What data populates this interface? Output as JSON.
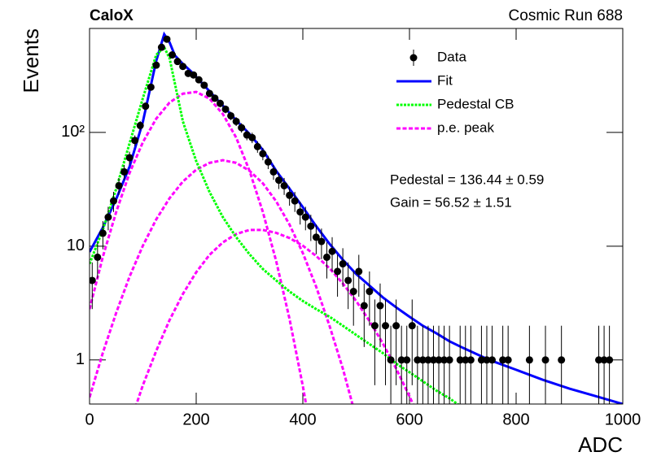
{
  "chart_data": {
    "type": "line",
    "title": "CaloX",
    "subtitle": "Cosmic Run 688",
    "x_label": "ADC",
    "y_label": "Events",
    "annotations": [
      "Pedestal = 136.44 ± 0.59",
      "Gain = 56.52 ± 1.51"
    ],
    "xlim": [
      0,
      1000
    ],
    "xticks": [
      0,
      200,
      400,
      600,
      800,
      1000
    ],
    "ylim": [
      0.41,
      820
    ],
    "ylog": true,
    "yticks": [
      1,
      10,
      {
        "value": 100,
        "label": "10²"
      }
    ],
    "legend": "upper right",
    "series": [
      {
        "name": "Data",
        "type": "errorbar",
        "color": "#000000",
        "x": [
          5,
          15,
          25,
          35,
          45,
          55,
          65,
          75,
          85,
          95,
          105,
          115,
          125,
          135,
          145,
          155,
          165,
          175,
          185,
          195,
          205,
          215,
          225,
          235,
          245,
          255,
          265,
          275,
          285,
          295,
          305,
          315,
          325,
          335,
          345,
          355,
          365,
          375,
          385,
          395,
          405,
          415,
          425,
          435,
          445,
          455,
          465,
          475,
          485,
          495,
          505,
          515,
          525,
          535,
          545,
          555,
          565,
          575,
          585,
          595,
          605,
          615,
          625,
          635,
          645,
          655,
          665,
          675,
          685,
          695,
          705,
          715,
          725,
          735,
          745,
          755,
          765,
          775,
          785,
          795,
          805,
          815,
          825,
          835,
          845,
          855,
          865,
          875,
          885,
          895,
          905,
          915,
          925,
          935,
          945,
          955,
          965,
          975,
          985,
          995
        ],
        "values": [
          5,
          8,
          13,
          18,
          25,
          34,
          45,
          60,
          85,
          115,
          170,
          250,
          390,
          560,
          660,
          480,
          420,
          380,
          330,
          320,
          290,
          260,
          220,
          200,
          180,
          160,
          140,
          125,
          110,
          95,
          90,
          75,
          65,
          55,
          45,
          38,
          34,
          28,
          25,
          20,
          18,
          15,
          12,
          11,
          8,
          9,
          6,
          7,
          5,
          4,
          6,
          3,
          4,
          2,
          3,
          2,
          1,
          2,
          1,
          1,
          2,
          1,
          1,
          1,
          1,
          1,
          1,
          1,
          null,
          1,
          1,
          1,
          null,
          1,
          1,
          1,
          null,
          1,
          1,
          null,
          null,
          null,
          1,
          null,
          null,
          1,
          null,
          null,
          1,
          null,
          null,
          null,
          null,
          null,
          null,
          1,
          1,
          1,
          null,
          null
        ],
        "errors": [
          2.2,
          2.8,
          3.6,
          4.2,
          5,
          5.8,
          6.7,
          7.7,
          9.2,
          10.7,
          13,
          15.8,
          19.7,
          23.7,
          25.7,
          21.9,
          20.5,
          19.5,
          18.2,
          17.9,
          17,
          16.1,
          14.8,
          14.1,
          13.4,
          12.6,
          11.8,
          11.2,
          10.5,
          9.7,
          9.5,
          8.7,
          8.1,
          7.4,
          6.7,
          6.2,
          5.8,
          5.3,
          5,
          4.5,
          4.2,
          3.9,
          3.5,
          3.3,
          2.8,
          3,
          2.4,
          2.6,
          2.2,
          2,
          2.4,
          1.7,
          2,
          1.4,
          1.7,
          1.4,
          1,
          1.4,
          1,
          1,
          1.4,
          1,
          1,
          1,
          1,
          1,
          1,
          1,
          null,
          1,
          1,
          1,
          null,
          1,
          1,
          1,
          null,
          1,
          1,
          null,
          null,
          null,
          1,
          null,
          null,
          1,
          null,
          null,
          1,
          null,
          null,
          null,
          null,
          null,
          null,
          1,
          1,
          1,
          null,
          null
        ]
      },
      {
        "name": "Fit",
        "type": "line",
        "color": "#0000ff",
        "style": "solid",
        "x": [
          0,
          25,
          50,
          75,
          100,
          125,
          140,
          150,
          160,
          175,
          190,
          200,
          225,
          250,
          275,
          300,
          325,
          350,
          375,
          400,
          425,
          450,
          475,
          500,
          525,
          550,
          575,
          600,
          625,
          650,
          675,
          700,
          750,
          800,
          850,
          900,
          950,
          1000
        ],
        "values": [
          8.9,
          14.6,
          26,
          50,
          124,
          425,
          730,
          620,
          475,
          400,
          345,
          308,
          230,
          172,
          128,
          97,
          70,
          46,
          32,
          22,
          15,
          10.5,
          7.6,
          5.7,
          4.5,
          3.55,
          2.9,
          2.4,
          2.0,
          1.72,
          1.46,
          1.28,
          1.0,
          0.82,
          0.67,
          0.56,
          0.48,
          0.41
        ]
      },
      {
        "name": "Pedestal CB",
        "type": "line",
        "color": "#00ff00",
        "style": "dotted",
        "x": [
          0,
          25,
          50,
          75,
          100,
          125,
          140,
          150,
          175,
          200,
          225,
          250,
          275,
          300,
          325,
          350,
          375,
          400,
          425,
          450,
          475,
          500,
          525,
          550,
          575,
          600,
          625,
          650,
          675,
          700
        ],
        "values": [
          7,
          14,
          32,
          80,
          200,
          480,
          560,
          450,
          125,
          56,
          30,
          18,
          12,
          8.5,
          6.3,
          5,
          4,
          3.3,
          2.8,
          2.4,
          2,
          1.66,
          1.38,
          1.15,
          0.93,
          0.78,
          0.65,
          0.54,
          0.46,
          0.38
        ]
      },
      {
        "name": "p.e. peak",
        "type": "multiline",
        "color": "#ff00ff",
        "style": "dashed",
        "x": [
          0,
          25,
          50,
          75,
          100,
          125,
          150,
          175,
          200,
          225,
          250,
          275,
          300,
          325,
          350,
          375,
          400,
          425,
          450,
          475,
          500,
          525,
          550,
          575,
          600,
          625,
          650,
          675,
          700
        ],
        "curves": [
          [
            2.8,
            8.1,
            20,
            44,
            82,
            132,
            183,
            219,
            227,
            198,
            145,
            90,
            46,
            20,
            7.4,
            2.3,
            0.59,
            0.13,
            null,
            null,
            null,
            null,
            null,
            null,
            null,
            null,
            null,
            null,
            null
          ],
          [
            0.47,
            1.16,
            2.6,
            5.4,
            10.1,
            17.2,
            26.4,
            37,
            47,
            54,
            57,
            54,
            46,
            35.7,
            24.8,
            15.5,
            8.7,
            4.4,
            2.0,
            0.84,
            0.31,
            null,
            null,
            null,
            null,
            null,
            null,
            null,
            null
          ],
          [
            null,
            null,
            null,
            0.27,
            0.6,
            1.2,
            2.24,
            3.8,
            5.9,
            8.4,
            10.8,
            12.8,
            13.9,
            13.9,
            13.1,
            11.8,
            10.1,
            8.2,
            6.4,
            4.7,
            3.3,
            2.2,
            1.4,
            0.84,
            0.48,
            0.26,
            null,
            null,
            null
          ]
        ]
      }
    ]
  }
}
